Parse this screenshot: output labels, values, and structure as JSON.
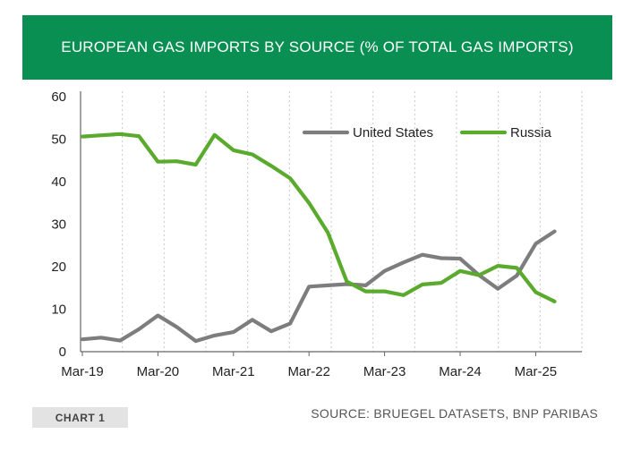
{
  "chart_data": {
    "type": "line",
    "title": "EUROPEAN GAS IMPORTS BY SOURCE (% OF TOTAL GAS IMPORTS)",
    "xlabel": "",
    "ylabel": "",
    "ylim": [
      0,
      60
    ],
    "yticks": [
      "0",
      "10",
      "20",
      "30",
      "40",
      "50",
      "60"
    ],
    "xtick_labels": [
      "Mar-19",
      "Mar-20",
      "Mar-21",
      "Mar-22",
      "Mar-23",
      "Mar-24",
      "Mar-25"
    ],
    "grid": "vertical",
    "legend_position": "top-right",
    "series": [
      {
        "name": "United States",
        "color": "#7d7d7d",
        "values": [
          2.9,
          3.3,
          2.6,
          5.3,
          8.5,
          5.8,
          2.5,
          3.8,
          4.6,
          7.5,
          4.8,
          6.6,
          15.3,
          15.6,
          15.9,
          15.6,
          19.0,
          21.0,
          22.8,
          22.0,
          21.9,
          18.0,
          14.8,
          17.9,
          25.4,
          28.3
        ]
      },
      {
        "name": "Russia",
        "color": "#5aaa2e",
        "values": [
          50.6,
          50.9,
          51.2,
          50.7,
          44.7,
          44.8,
          44.0,
          51.0,
          47.4,
          46.4,
          43.7,
          40.8,
          35.0,
          28.0,
          16.5,
          14.2,
          14.2,
          13.3,
          15.8,
          16.2,
          19.0,
          18.0,
          20.2,
          19.7,
          14.0,
          11.8
        ]
      }
    ]
  },
  "footer": {
    "chart_label": "CHART 1",
    "source": "SOURCE: BRUEGEL DATASETS, BNP PARIBAS"
  }
}
